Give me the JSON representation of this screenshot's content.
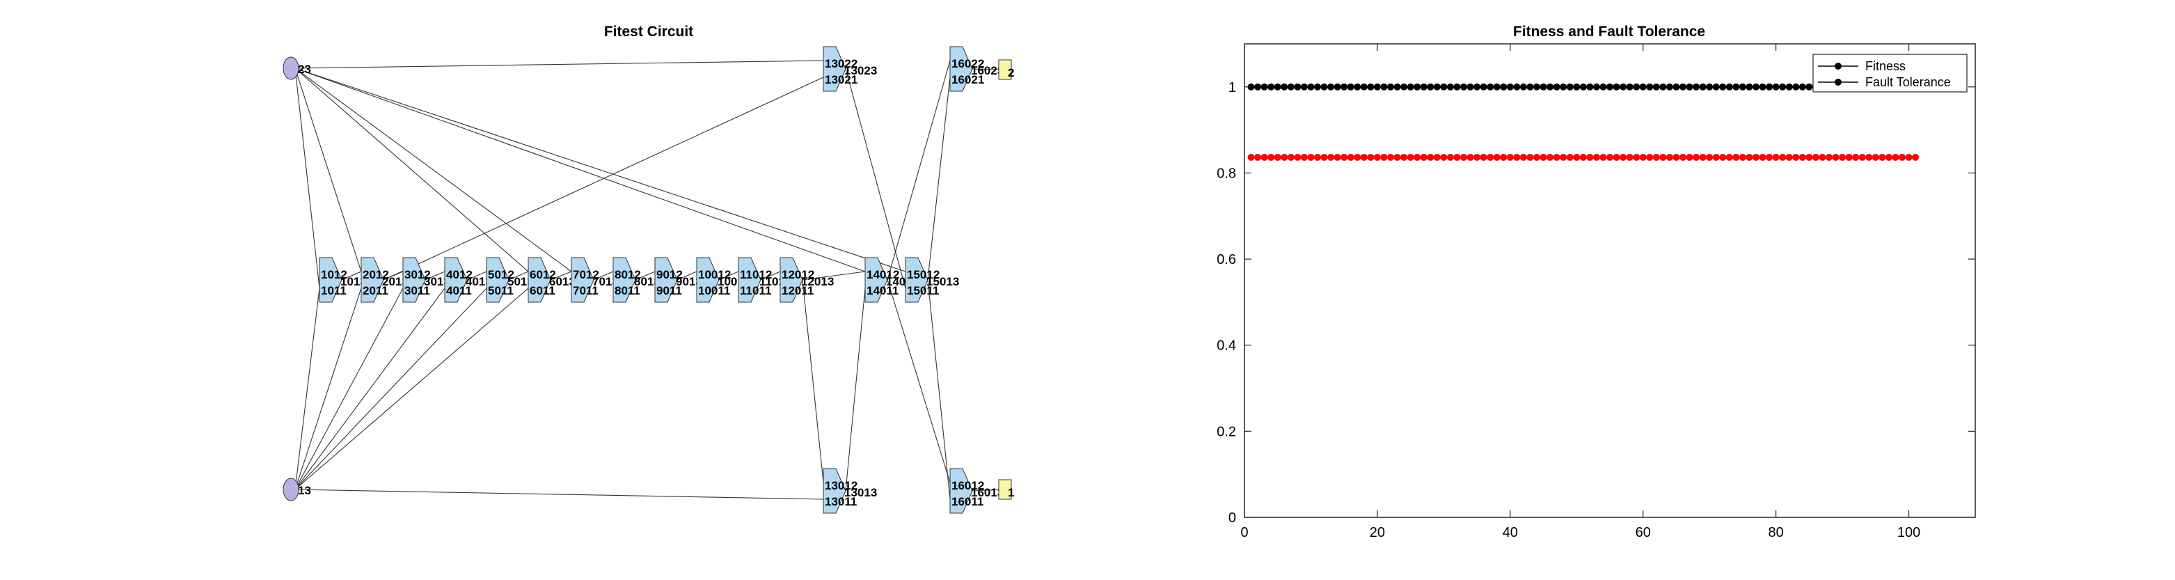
{
  "chart_data": [
    {
      "type": "diagram",
      "title": "Fitest Circuit",
      "inputs": [
        {
          "id": "in_top",
          "label": "23"
        },
        {
          "id": "in_bot",
          "label": "13"
        }
      ],
      "gates": [
        {
          "id": "g1",
          "labels": [
            "1012",
            "1011",
            "1013"
          ]
        },
        {
          "id": "g2",
          "labels": [
            "2012",
            "2011",
            "2013"
          ]
        },
        {
          "id": "g3",
          "labels": [
            "3012",
            "3011",
            "3013"
          ]
        },
        {
          "id": "g4",
          "labels": [
            "4012",
            "4011",
            "4013"
          ]
        },
        {
          "id": "g5",
          "labels": [
            "5012",
            "5011",
            "5013"
          ]
        },
        {
          "id": "g6",
          "labels": [
            "6012",
            "6011",
            "6013"
          ]
        },
        {
          "id": "g7",
          "labels": [
            "7012",
            "7011",
            "7013"
          ]
        },
        {
          "id": "g8",
          "labels": [
            "8012",
            "8011",
            "8013"
          ]
        },
        {
          "id": "g9",
          "labels": [
            "9012",
            "9011",
            "9013"
          ]
        },
        {
          "id": "g10",
          "labels": [
            "10012",
            "10011",
            "10013"
          ]
        },
        {
          "id": "g11",
          "labels": [
            "11012",
            "11011",
            "11013"
          ]
        },
        {
          "id": "g12",
          "labels": [
            "12012",
            "12011",
            "12013"
          ]
        },
        {
          "id": "g14",
          "labels": [
            "14012",
            "14011",
            "14013"
          ]
        },
        {
          "id": "g15",
          "labels": [
            "15012",
            "15011",
            "15013"
          ]
        },
        {
          "id": "g13t",
          "labels": [
            "13022",
            "13021",
            "13023"
          ]
        },
        {
          "id": "g13b",
          "labels": [
            "13012",
            "13011",
            "13013"
          ]
        },
        {
          "id": "g16t",
          "labels": [
            "16022",
            "16021",
            "16023"
          ]
        },
        {
          "id": "g16b",
          "labels": [
            "16012",
            "16011",
            "16013"
          ]
        }
      ],
      "outputs": [
        {
          "id": "out_top",
          "label": "2"
        },
        {
          "id": "out_bot",
          "label": "1"
        }
      ]
    },
    {
      "type": "line",
      "title": "Fitness and Fault Tolerance",
      "xlim": [
        0,
        110
      ],
      "ylim": [
        0,
        1.1
      ],
      "xticks": [
        0,
        20,
        40,
        60,
        80,
        100
      ],
      "yticks": [
        0,
        0.2,
        0.4,
        0.6,
        0.8,
        1
      ],
      "xtick_labels": [
        "0",
        "20",
        "40",
        "60",
        "80",
        100
      ],
      "ytick_labels": [
        "0",
        "0.2",
        "0.4",
        "0.6",
        "0.8",
        "1"
      ],
      "legend_position": "top-right",
      "series": [
        {
          "name": "Fitness",
          "color": "#000000",
          "x_start": 1,
          "x_end": 101,
          "value": 1
        },
        {
          "name": "Fault Tolerance",
          "color": "#ff0000",
          "x_start": 1,
          "x_end": 101,
          "value": 0.8364
        }
      ]
    }
  ]
}
